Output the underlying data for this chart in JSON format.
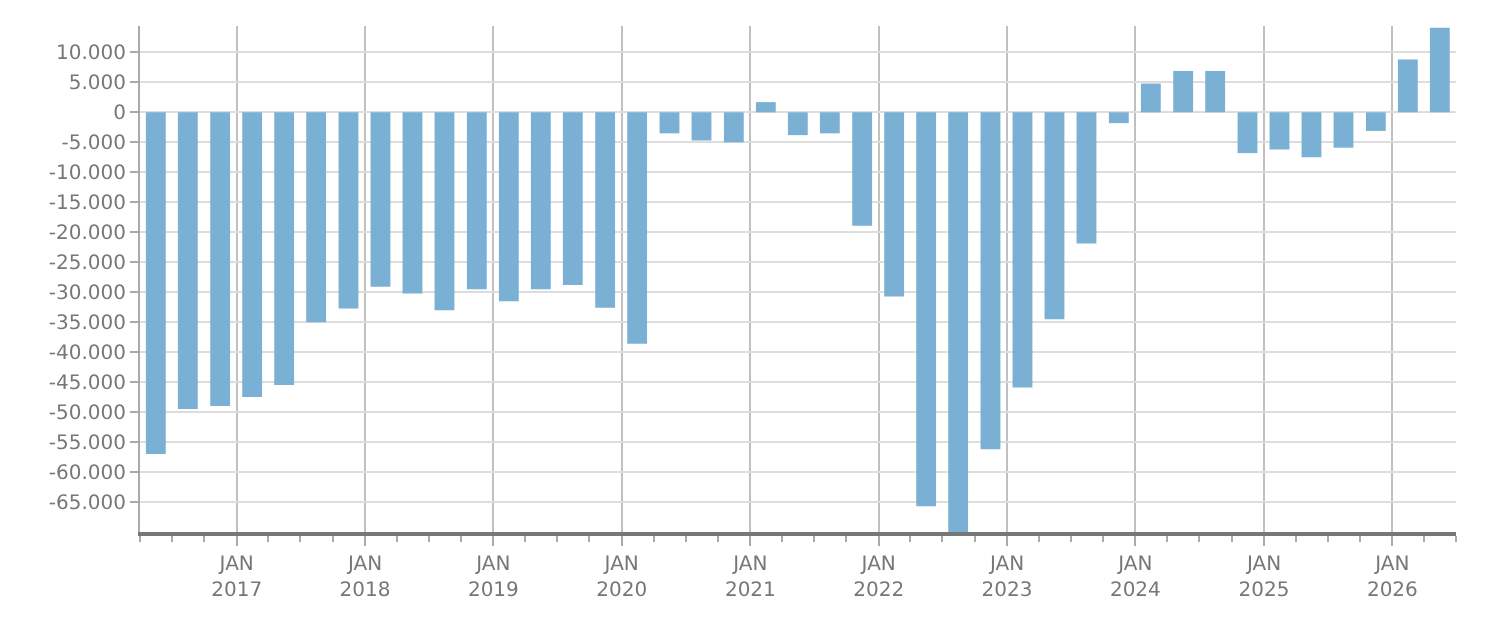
{
  "chart_data": {
    "type": "bar",
    "x": [
      "2016-05-16",
      "2016-08-15",
      "2016-11-15",
      "2017-02-14",
      "2017-05-16",
      "2017-08-15",
      "2017-11-15",
      "2018-02-14",
      "2018-05-16",
      "2018-08-15",
      "2018-11-15",
      "2019-02-14",
      "2019-05-16",
      "2019-08-15",
      "2019-11-15",
      "2020-02-14",
      "2020-05-16",
      "2020-08-15",
      "2020-11-15",
      "2021-02-14",
      "2021-05-16",
      "2021-08-15",
      "2021-11-15",
      "2022-02-14",
      "2022-05-16",
      "2022-08-15",
      "2022-11-15",
      "2023-02-14",
      "2023-05-16",
      "2023-08-15",
      "2023-11-15",
      "2024-02-14",
      "2024-05-16",
      "2024-08-15",
      "2024-11-15",
      "2025-02-14",
      "2025-05-16",
      "2025-08-15",
      "2025-11-15",
      "2026-02-14",
      "2026-05-16"
    ],
    "values": [
      -57000,
      -49500,
      -49000,
      -47500,
      -45500,
      -35000,
      -32700,
      -29100,
      -30200,
      -33000,
      -29500,
      -31500,
      -29500,
      -28800,
      -32600,
      -38600,
      -3500,
      -4700,
      -5000,
      1700,
      -3800,
      -3500,
      -18900,
      -30700,
      -65700,
      -70000,
      -56200,
      -45900,
      -34500,
      -21900,
      -1800,
      4800,
      6900,
      6900,
      -6800,
      -6200,
      -7500,
      -5900,
      -3100,
      8800,
      14100
    ],
    "color": "#7ab0d3",
    "xlim": [
      "2016-04-01",
      "2026-07-01"
    ],
    "xticks": [
      {
        "value": "2017-01-01",
        "label": "JAN\n2017"
      },
      {
        "value": "2018-01-01",
        "label": "JAN\n2018"
      },
      {
        "value": "2019-01-01",
        "label": "JAN\n2019"
      },
      {
        "value": "2020-01-01",
        "label": "JAN\n2020"
      },
      {
        "value": "2021-01-01",
        "label": "JAN\n2021"
      },
      {
        "value": "2022-01-01",
        "label": "JAN\n2022"
      },
      {
        "value": "2023-01-01",
        "label": "JAN\n2023"
      },
      {
        "value": "2024-01-01",
        "label": "JAN\n2024"
      },
      {
        "value": "2025-01-01",
        "label": "JAN\n2025"
      },
      {
        "value": "2026-01-01",
        "label": "JAN\n2026"
      }
    ],
    "ylim": [
      -70000,
      14400
    ],
    "yticks": [
      {
        "value": -65000,
        "label": "-65.000"
      },
      {
        "value": -60000,
        "label": "-60.000"
      },
      {
        "value": -55000,
        "label": "-55.000"
      },
      {
        "value": -50000,
        "label": "-50.000"
      },
      {
        "value": -45000,
        "label": "-45.000"
      },
      {
        "value": -40000,
        "label": "-40.000"
      },
      {
        "value": -35000,
        "label": "-35.000"
      },
      {
        "value": -30000,
        "label": "-30.000"
      },
      {
        "value": -25000,
        "label": "-25.000"
      },
      {
        "value": -20000,
        "label": "-20.000"
      },
      {
        "value": -15000,
        "label": "-15.000"
      },
      {
        "value": -10000,
        "label": "-10.000"
      },
      {
        "value": -5000,
        "label": "-5.000"
      },
      0,
      {
        "value": 5000,
        "label": "5.000"
      },
      {
        "value": 10000,
        "label": "10.000"
      }
    ],
    "grid": true
  }
}
